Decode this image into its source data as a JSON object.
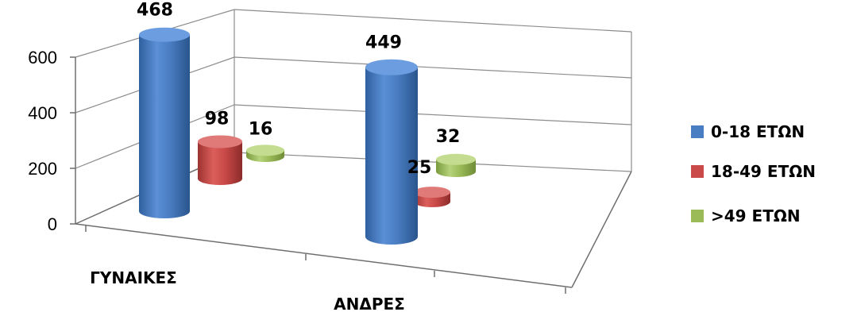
{
  "chart_data": {
    "type": "bar",
    "style": "3d-cylinder",
    "categories": [
      "ΓΥΝΑΙΚΕΣ",
      "ΑΝΔΡΕΣ"
    ],
    "series": [
      {
        "name": "0-18 ΕΤΩΝ",
        "values": [
          468,
          449
        ],
        "color": "#4a7ec3"
      },
      {
        "name": "18-49 ΕΤΩΝ",
        "values": [
          98,
          25
        ],
        "color": "#c94a48"
      },
      {
        "name": ">49 ΕΤΩΝ",
        "values": [
          16,
          32
        ],
        "color": "#9bbb59"
      }
    ],
    "y_ticks": [
      "0",
      "200",
      "400",
      "600"
    ],
    "ylim": [
      0,
      600
    ],
    "grid": true,
    "legend_position": "right",
    "data_labels": true
  }
}
